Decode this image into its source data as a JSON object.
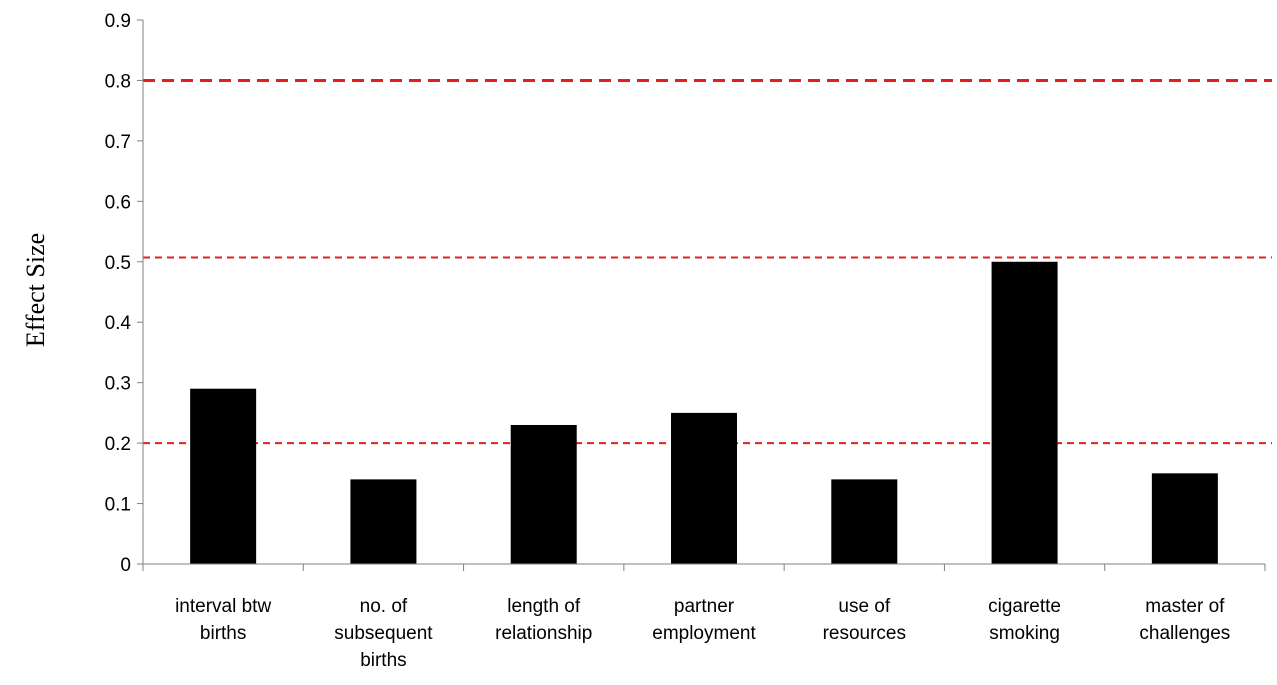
{
  "chart_data": {
    "type": "bar",
    "ylabel": "Effect Size",
    "xlabel": "",
    "ylim": [
      0,
      0.9
    ],
    "yticks": [
      "0",
      "0.1",
      "0.2",
      "0.3",
      "0.4",
      "0.5",
      "0.6",
      "0.7",
      "0.8",
      "0.9"
    ],
    "categories": [
      [
        "interval btw",
        "births"
      ],
      [
        "no. of",
        "subsequent",
        "births"
      ],
      [
        "length of",
        "relationship"
      ],
      [
        "partner",
        "employment"
      ],
      [
        "use of",
        "resources"
      ],
      [
        "cigarette",
        "smoking"
      ],
      [
        "master of",
        "challenges"
      ]
    ],
    "values": [
      0.29,
      0.14,
      0.23,
      0.25,
      0.14,
      0.5,
      0.15
    ],
    "bar_color": "#000000",
    "grid": false,
    "reference_lines": [
      {
        "value": 0.2,
        "color": "#e02020",
        "style": "dashed"
      },
      {
        "value": 0.507,
        "color": "#e02020",
        "style": "dashed"
      },
      {
        "value": 0.8,
        "color": "#e02020",
        "style": "dashed-long"
      }
    ]
  }
}
